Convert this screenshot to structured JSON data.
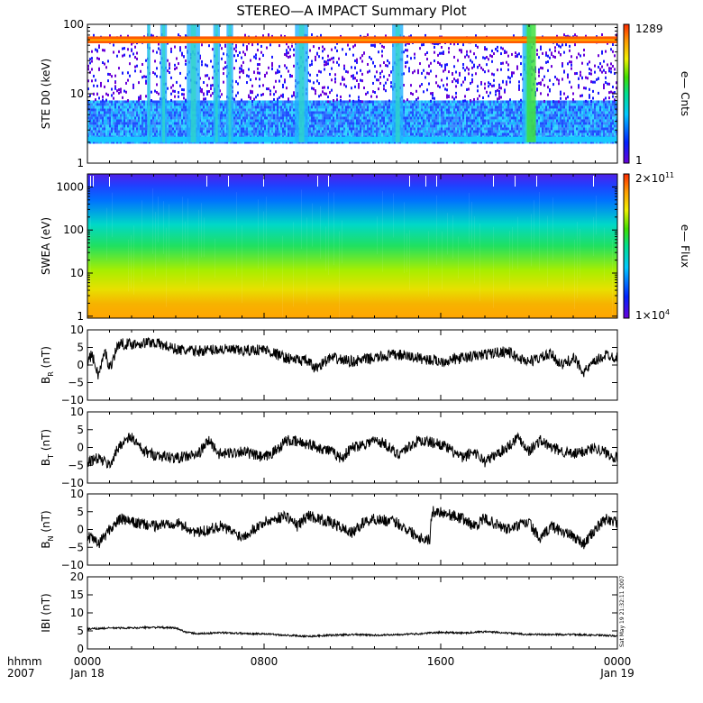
{
  "chart_data": {
    "title": "STEREO—A IMPACT Summary Plot",
    "time_axis": {
      "label_row1": "hhmm",
      "label_row2": "2007",
      "ticks": [
        {
          "hours": 0,
          "label1": "0000",
          "label2": "Jan 18"
        },
        {
          "hours": 8,
          "label1": "0800",
          "label2": ""
        },
        {
          "hours": 16,
          "label1": "1600",
          "label2": ""
        },
        {
          "hours": 24,
          "label1": "0000",
          "label2": "Jan 19"
        }
      ],
      "range_hours": [
        0,
        24
      ]
    },
    "stamp": "Sat May 19 21:32:11 2007",
    "panels": [
      {
        "id": "ste",
        "type": "heatmap",
        "ylabel": "STE D0 (keV)",
        "yscale": "log",
        "ylim": [
          1,
          100
        ],
        "yticks": [
          {
            "v": 1,
            "t": "1"
          },
          {
            "v": 10,
            "t": "10"
          },
          {
            "v": 100,
            "t": "100"
          }
        ],
        "colorbar": {
          "label": "e— Cnts",
          "max_text": "1289",
          "min_text": "1",
          "max": 1289,
          "min": 1,
          "scale": "log"
        },
        "bursts_hours": [
          [
            2.7,
            2.85
          ],
          [
            3.3,
            3.6
          ],
          [
            4.5,
            5.1
          ],
          [
            5.7,
            6.0
          ],
          [
            6.3,
            6.6
          ],
          [
            9.4,
            10.0
          ],
          [
            13.8,
            14.3
          ],
          [
            19.7,
            20.1
          ]
        ],
        "band_keV": [
          55,
          65
        ]
      },
      {
        "id": "swea",
        "type": "heatmap",
        "ylabel": "SWEA (eV)",
        "yscale": "log",
        "ylim": [
          0.9,
          2000
        ],
        "yticks": [
          {
            "v": 1,
            "t": "1"
          },
          {
            "v": 10,
            "t": "10"
          },
          {
            "v": 100,
            "t": "100"
          },
          {
            "v": 1000,
            "t": "1000"
          }
        ],
        "colorbar": {
          "label": "e— Flux",
          "max_text": "2×10",
          "max_exp": "11",
          "min_text": "1×10",
          "min_exp": "4",
          "max": 200000000000.0,
          "min": 10000.0,
          "scale": "log"
        }
      },
      {
        "id": "br",
        "type": "line",
        "label_main": "B",
        "label_sub": "R",
        "label_unit": " (nT)",
        "ylim": [
          -10,
          10
        ],
        "yticks": [
          {
            "v": 10,
            "t": "10"
          },
          {
            "v": 5,
            "t": "5"
          },
          {
            "v": 0,
            "t": "0"
          },
          {
            "v": -5,
            "t": "−5"
          },
          {
            "v": -10,
            "t": "−10"
          }
        ],
        "x_hours": [
          0,
          0.2,
          0.5,
          0.8,
          1,
          1.4,
          2,
          3,
          4,
          4.5,
          5,
          6,
          7,
          8,
          9,
          10,
          10.3,
          11,
          12,
          13,
          14,
          15,
          16,
          17,
          18,
          19,
          19.5,
          20,
          21,
          21.5,
          22,
          22.5,
          23,
          23.5,
          24
        ],
        "values": [
          1,
          3,
          -3,
          4,
          -1,
          6,
          6,
          6.5,
          4.5,
          4,
          4,
          4.5,
          4,
          4.5,
          2,
          1,
          -1,
          2,
          1,
          2,
          3,
          2,
          1,
          2,
          3,
          4,
          2,
          1,
          3,
          0,
          2,
          -2,
          1,
          3,
          2
        ]
      },
      {
        "id": "bt",
        "type": "line",
        "label_main": "B",
        "label_sub": "T",
        "label_unit": " (nT)",
        "ylim": [
          -10,
          10
        ],
        "yticks": [
          {
            "v": 10,
            "t": "10"
          },
          {
            "v": 5,
            "t": "5"
          },
          {
            "v": 0,
            "t": "0"
          },
          {
            "v": -5,
            "t": "−5"
          },
          {
            "v": -10,
            "t": "−10"
          }
        ],
        "x_hours": [
          0,
          0.5,
          1,
          1.5,
          2,
          2.5,
          3,
          4,
          5,
          5.5,
          6,
          7,
          8,
          8.5,
          9,
          10,
          11,
          11.5,
          12,
          13,
          13.5,
          14,
          15,
          16,
          17,
          17.5,
          18,
          19,
          19.5,
          20,
          20.5,
          21,
          22,
          23,
          24
        ],
        "values": [
          -4,
          -3,
          -5,
          1,
          3,
          -1,
          -2,
          -3,
          -2,
          2,
          -2,
          -1,
          -3,
          -1,
          2,
          1,
          -1,
          -3,
          0,
          2,
          1,
          -2,
          2,
          1,
          -3,
          -1,
          -4,
          0,
          3,
          -1,
          2,
          0,
          -2,
          0,
          -3
        ]
      },
      {
        "id": "bn",
        "type": "line",
        "label_main": "B",
        "label_sub": "N",
        "label_unit": " (nT)",
        "ylim": [
          -10,
          10
        ],
        "yticks": [
          {
            "v": 10,
            "t": "10"
          },
          {
            "v": 5,
            "t": "5"
          },
          {
            "v": 0,
            "t": "0"
          },
          {
            "v": -5,
            "t": "−5"
          },
          {
            "v": -10,
            "t": "−10"
          }
        ],
        "x_hours": [
          0,
          0.5,
          1,
          1.5,
          2,
          3,
          4,
          5,
          6,
          7,
          8,
          9,
          9.5,
          10,
          11,
          12,
          12.5,
          13,
          14,
          15,
          15.5,
          15.6,
          16,
          17,
          17.5,
          18,
          19,
          20,
          20.5,
          21,
          22,
          22.5,
          23,
          23.5,
          24
        ],
        "values": [
          -2,
          -4,
          0,
          3,
          2,
          1,
          2,
          -1,
          1,
          -2,
          2,
          4,
          1,
          4,
          2,
          -1,
          2,
          3,
          2,
          -2,
          -3,
          5,
          5,
          3,
          1,
          3,
          0,
          2,
          -3,
          1,
          -2,
          -4,
          0,
          3,
          2
        ]
      },
      {
        "id": "bmag",
        "type": "line",
        "label_main": "IBI",
        "label_sub": "",
        "label_unit": " (nT)",
        "ylim": [
          0,
          20
        ],
        "yticks": [
          {
            "v": 20,
            "t": "20"
          },
          {
            "v": 15,
            "t": "15"
          },
          {
            "v": 10,
            "t": "10"
          },
          {
            "v": 5,
            "t": "5"
          },
          {
            "v": 0,
            "t": "0"
          }
        ],
        "x_hours": [
          0,
          1,
          2,
          3,
          4,
          4.5,
          5,
          6,
          7,
          8,
          9,
          10,
          11,
          12,
          13,
          14,
          15,
          16,
          17,
          18,
          19,
          20,
          21,
          22,
          23,
          24
        ],
        "values": [
          5.5,
          5.8,
          5.8,
          6,
          5.8,
          4.6,
          4.2,
          4.5,
          4.3,
          4.2,
          3.8,
          3.5,
          3.8,
          4,
          3.8,
          4,
          4.2,
          4.6,
          4.4,
          4.8,
          4.4,
          4,
          4,
          4,
          3.8,
          3.6
        ]
      }
    ]
  }
}
